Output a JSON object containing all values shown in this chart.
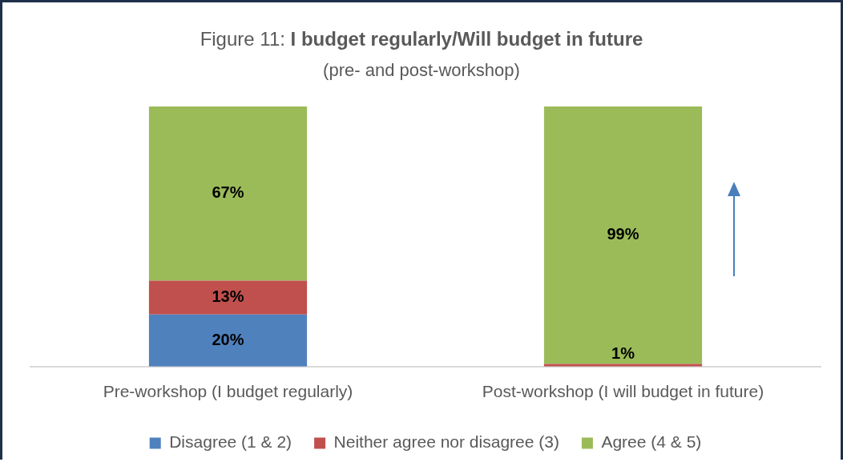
{
  "chart_data": {
    "type": "bar",
    "title": "Figure 11: I budget regularly/Will budget in future",
    "subtitle": "(pre- and post-workshop)",
    "categories": [
      "Pre-workshop (I budget regularly)",
      "Post-workshop (I will budget in future)"
    ],
    "stacked": true,
    "legend": "bottom",
    "grid": false,
    "series": [
      {
        "name": "Disagree (1 & 2)",
        "color": "#4f81bd",
        "values": [
          20,
          0
        ],
        "value_labels": [
          "20%",
          null
        ]
      },
      {
        "name": "Neither agree nor disagree (3)",
        "color": "#c0504d",
        "values": [
          13,
          1
        ],
        "value_labels": [
          "13%",
          "1%"
        ]
      },
      {
        "name": "Agree (4 & 5)",
        "color": "#9bbb59",
        "values": [
          67,
          99
        ],
        "value_labels": [
          "67%",
          "99%"
        ]
      }
    ]
  }
}
